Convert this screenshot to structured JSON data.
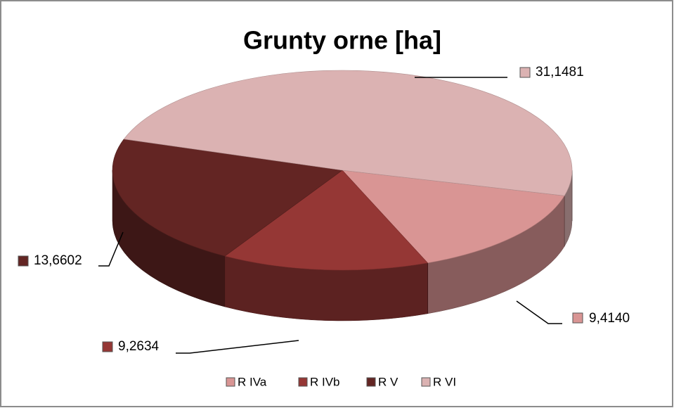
{
  "chart_data": {
    "type": "pie3d",
    "title": "Grunty orne [ha]",
    "categories": [
      "R IVa",
      "R IVb",
      "R V",
      "R VI"
    ],
    "values": [
      9.414,
      9.2634,
      13.6602,
      31.1481
    ],
    "value_labels": [
      "9,4140",
      "9,2634",
      "13,6602",
      "31,1481"
    ],
    "colors": [
      "#d99594",
      "#953735",
      "#632523",
      "#dbb2b2"
    ],
    "legend": "bottom"
  }
}
